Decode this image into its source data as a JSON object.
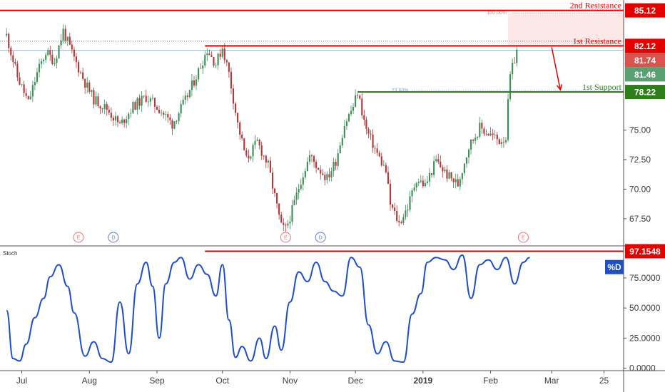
{
  "chart_data": [
    {
      "type": "candlestick",
      "title": "",
      "y_ticks": [
        "67.50",
        "70.00",
        "72.50",
        "75.00"
      ],
      "ylim": [
        65.2,
        86.0
      ],
      "x_ticks": [
        {
          "label": "Jul",
          "t": 7,
          "bold": false
        },
        {
          "label": "Aug",
          "t": 38,
          "bold": false
        },
        {
          "label": "Sep",
          "t": 69,
          "bold": false
        },
        {
          "label": "Oct",
          "t": 99,
          "bold": false
        },
        {
          "label": "Nov",
          "t": 130,
          "bold": false
        },
        {
          "label": "Dec",
          "t": 160,
          "bold": false
        },
        {
          "label": "2019",
          "t": 191,
          "bold": true
        },
        {
          "label": "Feb",
          "t": 222,
          "bold": false
        },
        {
          "label": "Mar",
          "t": 250,
          "bold": false
        },
        {
          "label": "25",
          "t": 274,
          "bold": false
        }
      ],
      "xlim": [
        -3,
        283
      ],
      "price_path": [
        [
          0,
          83.0
        ],
        [
          5,
          79.5
        ],
        [
          10,
          77.3
        ],
        [
          14,
          79.8
        ],
        [
          18,
          81.6
        ],
        [
          22,
          80.8
        ],
        [
          26,
          83.4
        ],
        [
          30,
          81.5
        ],
        [
          36,
          79.0
        ],
        [
          40,
          77.6
        ],
        [
          46,
          76.8
        ],
        [
          52,
          75.4
        ],
        [
          58,
          77.0
        ],
        [
          64,
          77.8
        ],
        [
          70,
          76.8
        ],
        [
          76,
          75.5
        ],
        [
          82,
          77.5
        ],
        [
          88,
          80.0
        ],
        [
          92,
          81.8
        ],
        [
          96,
          80.6
        ],
        [
          99,
          82.0
        ],
        [
          102,
          79.8
        ],
        [
          106,
          75.5
        ],
        [
          110,
          72.5
        ],
        [
          115,
          74.0
        ],
        [
          120,
          72.0
        ],
        [
          124,
          68.5
        ],
        [
          126,
          66.8
        ],
        [
          128,
          66.6
        ],
        [
          131,
          68.2
        ],
        [
          135,
          70.8
        ],
        [
          139,
          72.8
        ],
        [
          143,
          71.8
        ],
        [
          147,
          70.9
        ],
        [
          151,
          72.4
        ],
        [
          155,
          75.5
        ],
        [
          159,
          77.0
        ],
        [
          161,
          78.2
        ],
        [
          165,
          75.0
        ],
        [
          170,
          73.0
        ],
        [
          174,
          71.5
        ],
        [
          176,
          68.7
        ],
        [
          180,
          67.1
        ],
        [
          184,
          68.5
        ],
        [
          188,
          70.9
        ],
        [
          192,
          70.3
        ],
        [
          197,
          72.4
        ],
        [
          202,
          71.2
        ],
        [
          207,
          70.4
        ],
        [
          212,
          73.6
        ],
        [
          217,
          75.2
        ],
        [
          222,
          74.6
        ],
        [
          226,
          74.1
        ],
        [
          229,
          74.4
        ],
        [
          230,
          77.2
        ],
        [
          231,
          79.5
        ],
        [
          233,
          81.0
        ],
        [
          234,
          81.74
        ]
      ],
      "price_lines": [
        {
          "name": "2nd Resistance",
          "value": 85.12,
          "color": "#e50000",
          "t_start": -3
        },
        {
          "name": "1st Resistance",
          "value": 82.12,
          "color": "#e50000",
          "t_start": 91
        },
        {
          "name": "1st Support",
          "value": 78.22,
          "color": "#2e7d1b",
          "t_start": 161
        }
      ],
      "fib_levels": [
        {
          "label": "100.00%",
          "value": 84.9
        },
        {
          "label": "23.60%",
          "value": 78.35
        }
      ],
      "reference_levels": [
        {
          "value": 82.52,
          "style": "dotted",
          "color": "#4a6edb"
        },
        {
          "value": 81.74,
          "style": "solid",
          "color": "#9fb7c9"
        }
      ],
      "price_badges": [
        {
          "label": "85.12",
          "value": 85.12,
          "color": "#e50000"
        },
        {
          "label": "82.12",
          "value": 82.12,
          "color": "#e50000"
        },
        {
          "label": "81.74",
          "value": 81.74,
          "color": "#d9534f"
        },
        {
          "label": "81.46",
          "value": 81.46,
          "color": "#5aa072"
        },
        {
          "label": "78.22",
          "value": 78.22,
          "color": "#2e7d1b"
        }
      ],
      "events": [
        {
          "label": "E",
          "t": 33,
          "color": "#e57373"
        },
        {
          "label": "D",
          "t": 49,
          "color": "#5c7ccf"
        },
        {
          "label": "E",
          "t": 128,
          "color": "#e57373"
        },
        {
          "label": "D",
          "t": 144,
          "color": "#5c7ccf"
        },
        {
          "label": "E",
          "t": 237,
          "color": "#e57373"
        }
      ],
      "arrow": {
        "t_from": 250,
        "v_from": 82.0,
        "t_to": 254,
        "v_to": 78.4,
        "color": "#e50000"
      },
      "colors": {
        "up": "#3f8f58",
        "down": "#b2383a",
        "arrow": "#e50000"
      }
    },
    {
      "type": "line",
      "indicator": "Stoch",
      "y_ticks": [
        "0.0000",
        "25.0000",
        "50.0000",
        "75.0000"
      ],
      "ylim": [
        -2,
        101
      ],
      "series": [
        {
          "label": "%D",
          "color": "#1f4fc6",
          "x": [
            0,
            3,
            6,
            9,
            13,
            17,
            20,
            24,
            28,
            31,
            36,
            40,
            44,
            48,
            52,
            56,
            60,
            64,
            67,
            70,
            73,
            77,
            80,
            84,
            88,
            92,
            96,
            99,
            102,
            105,
            108,
            112,
            116,
            119,
            123,
            126,
            130,
            134,
            138,
            142,
            146,
            150,
            154,
            158,
            162,
            166,
            170,
            174,
            178,
            182,
            186,
            190,
            193,
            197,
            201,
            205,
            209,
            213,
            217,
            221,
            225,
            229,
            233,
            237,
            240
          ],
          "values": [
            48,
            8,
            6,
            20,
            42,
            58,
            76,
            86,
            68,
            46,
            10,
            22,
            8,
            5,
            55,
            12,
            70,
            88,
            68,
            25,
            70,
            88,
            92,
            74,
            86,
            78,
            60,
            86,
            40,
            9,
            18,
            6,
            25,
            8,
            35,
            15,
            55,
            80,
            72,
            88,
            72,
            64,
            60,
            92,
            84,
            36,
            12,
            22,
            6,
            5,
            45,
            62,
            88,
            92,
            90,
            82,
            94,
            58,
            86,
            90,
            82,
            92,
            70,
            88,
            92
          ]
        }
      ],
      "overbought_line": {
        "value": 97.1548,
        "t_start": 91,
        "color": "#e50000"
      },
      "badges": [
        {
          "label": "97.1548",
          "value": 97.1548,
          "color": "#e50000"
        },
        {
          "label": "%D",
          "value": 84,
          "color": "#1f4fc6"
        }
      ]
    }
  ]
}
